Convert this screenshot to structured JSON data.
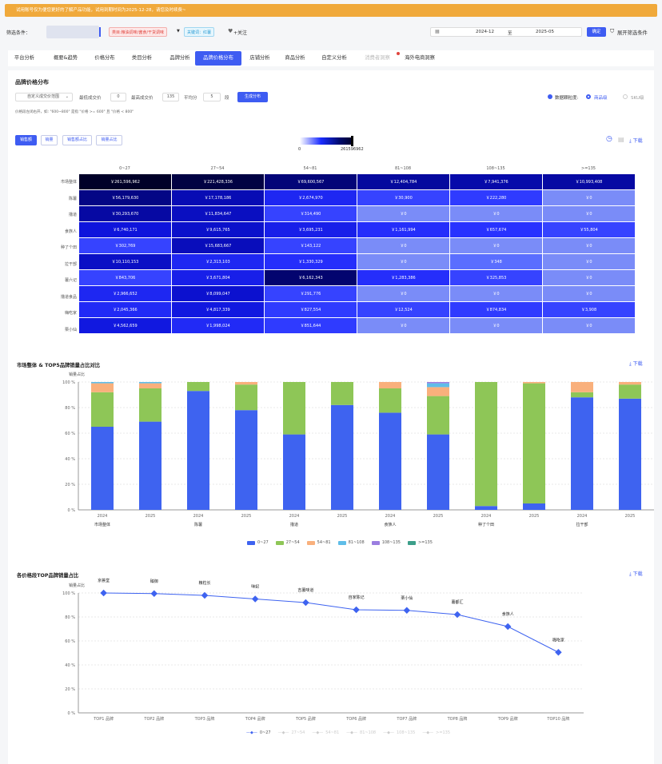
{
  "banner": {
    "text": "试用账号仅为便您更好的了解产品功能，试用到期时间为2025-12-28，请您及时续费~"
  },
  "filter": {
    "label": "筛选条件：",
    "tag_category": "类目:粮油调味/酱食/干货调味",
    "tag_brand": "关键词：红薯",
    "follow": "+关注",
    "date_start": "2024-12",
    "date_to": "至",
    "date_end": "2025-05",
    "confirm": "确定",
    "expand": "展开筛选条件"
  },
  "tabs": [
    {
      "label": "平台分析"
    },
    {
      "label": "概要&趋势"
    },
    {
      "label": "价格分布"
    },
    {
      "label": "类目分析"
    },
    {
      "label": "品牌分析"
    },
    {
      "label": "品牌价格分布"
    },
    {
      "label": "店铺分析"
    },
    {
      "label": "商品分析"
    },
    {
      "label": "自定义分析"
    },
    {
      "label": "消费者洞察"
    },
    {
      "label": "海外电商洞察"
    }
  ],
  "section1": {
    "title": "品牌价格分布",
    "range_select": "自定义成交价范围",
    "min_label": "最低成交价",
    "min_value": "0",
    "max_label": "最高成交价",
    "max_value": "135",
    "avg_label": "平均分",
    "avg_value": "5",
    "seg_label": "段",
    "generate": "生成分布",
    "hint": "价格段左闭右开，如: \"600~800\" 是指 \"价格 >= 600\" 且 \"价格 < 800\"",
    "granularity": "数据颗粒度:",
    "opt_product": "商品级",
    "opt_sku": "SKU级"
  },
  "metric_buttons": {
    "sales_amount": "销售额",
    "sales_volume": "销量",
    "amount_share": "销售额占比",
    "volume_share": "销量占比"
  },
  "download": "下载",
  "heatmap": {
    "scale_min": "0",
    "scale_max": "261596962",
    "cols": [
      "0~27",
      "27~54",
      "54~81",
      "81~108",
      "108~135",
      ">=135"
    ],
    "rows": [
      {
        "name": "市场整体",
        "cells": [
          "￥261,596,962",
          "￥221,428,336",
          "￥69,600,567",
          "￥12,404,784",
          "￥7,941,376",
          "￥10,993,408"
        ],
        "levels": [
          1.0,
          0.85,
          0.55,
          0.4,
          0.35,
          0.38
        ]
      },
      {
        "name": "陈薯",
        "cells": [
          "￥56,179,630",
          "￥17,178,186",
          "￥2,674,970",
          "￥30,900",
          "￥222,280",
          "￥0"
        ],
        "levels": [
          0.5,
          0.32,
          0.15,
          0.1,
          0.11,
          0.0
        ]
      },
      {
        "name": "撸道",
        "cells": [
          "￥30,293,670",
          "￥11,834,647",
          "￥314,490",
          "￥0",
          "￥0",
          "￥0"
        ],
        "levels": [
          0.38,
          0.28,
          0.1,
          0.0,
          0.0,
          0.0
        ]
      },
      {
        "name": "食族人",
        "cells": [
          "￥6,740,171",
          "￥9,615,765",
          "￥3,695,231",
          "￥1,161,994",
          "￥657,674",
          "￥55,804"
        ],
        "levels": [
          0.2,
          0.25,
          0.17,
          0.13,
          0.12,
          0.1
        ]
      },
      {
        "name": "种了个田",
        "cells": [
          "￥302,769",
          "￥15,683,667",
          "￥143,122",
          "￥0",
          "￥0",
          "￥0"
        ],
        "levels": [
          0.1,
          0.3,
          0.1,
          0.0,
          0.0,
          0.0
        ]
      },
      {
        "name": "拉干部",
        "cells": [
          "￥10,110,153",
          "￥2,313,103",
          "￥1,330,329",
          "￥0",
          "￥348",
          "￥0"
        ],
        "levels": [
          0.27,
          0.15,
          0.13,
          0.0,
          0.05,
          0.0
        ]
      },
      {
        "name": "薯六记",
        "cells": [
          "￥843,706",
          "￥3,671,804",
          "￥6,162,343",
          "￥1,283,386",
          "￥325,853",
          "￥0"
        ],
        "levels": [
          0.1,
          0.17,
          0.6,
          0.13,
          0.1,
          0.0
        ]
      },
      {
        "name": "撸道食品",
        "cells": [
          "￥2,966,652",
          "￥8,099,047",
          "￥291,776",
          "￥0",
          "￥0",
          "￥0"
        ],
        "levels": [
          0.15,
          0.24,
          0.1,
          0.0,
          0.0,
          0.0
        ]
      },
      {
        "name": "嗨吃家",
        "cells": [
          "￥2,045,366",
          "￥4,817,339",
          "￥827,554",
          "￥12,524",
          "￥874,834",
          "￥3,908"
        ],
        "levels": [
          0.14,
          0.19,
          0.11,
          0.1,
          0.11,
          0.1
        ]
      },
      {
        "name": "栗小仙",
        "cells": [
          "￥4,562,659",
          "￥1,998,024",
          "￥851,644",
          "￥0",
          "￥0",
          "￥0"
        ],
        "levels": [
          0.19,
          0.14,
          0.11,
          0.0,
          0.0,
          0.0
        ]
      }
    ]
  },
  "chart1": {
    "title": "市场整体 & TOP5品牌销量占比对比",
    "ylabel": "销量占比"
  },
  "chart2": {
    "title": "各价格段TOP品牌销量占比",
    "ylabel": "销量占比"
  },
  "chart_data": [
    {
      "type": "bar",
      "stacked": true,
      "title": "市场整体 & TOP5品牌销量占比对比",
      "ylabel": "销量占比",
      "ylim": [
        0,
        100
      ],
      "yticks": [
        "0 %",
        "20 %",
        "40 %",
        "60 %",
        "80 %",
        "100 %"
      ],
      "categories": [
        "2024",
        "2025",
        "2024",
        "2025",
        "2024",
        "2025",
        "2024",
        "2025",
        "2024",
        "2025",
        "2024",
        "2025"
      ],
      "groups": [
        "市场整体",
        "陈薯",
        "撸道",
        "食族人",
        "种了个田",
        "拉干部"
      ],
      "series": [
        {
          "name": "0~27",
          "color": "#3e63f0",
          "values": [
            65,
            69,
            93,
            78,
            59,
            82,
            76,
            59,
            3,
            5,
            88,
            87
          ]
        },
        {
          "name": "27~54",
          "color": "#8ec657",
          "values": [
            27,
            26,
            7,
            20,
            41,
            18,
            19,
            30,
            97,
            94,
            4,
            11
          ]
        },
        {
          "name": "54~81",
          "color": "#f9b07c",
          "values": [
            7,
            4,
            0,
            2,
            0,
            0,
            5,
            7,
            0,
            1,
            8,
            2
          ]
        },
        {
          "name": "81~108",
          "color": "#5fbde8",
          "values": [
            1,
            1,
            0,
            0,
            0,
            0,
            0,
            3,
            0,
            0,
            0,
            0
          ]
        },
        {
          "name": "108~135",
          "color": "#9b7ee0",
          "values": [
            0,
            0,
            0,
            0,
            0,
            0,
            0,
            1,
            0,
            0,
            0,
            0
          ]
        },
        {
          "name": ">=135",
          "color": "#3c9f8a",
          "values": [
            0,
            0,
            0,
            0,
            0,
            0,
            0,
            0,
            0,
            0,
            0,
            0
          ]
        }
      ]
    },
    {
      "type": "line",
      "title": "各价格段TOP品牌销量占比",
      "ylabel": "销量占比",
      "ylim": [
        0,
        100
      ],
      "yticks": [
        "0 %",
        "20 %",
        "40 %",
        "60 %",
        "80 %",
        "100 %"
      ],
      "categories": [
        "TOP1 品牌",
        "TOP2 品牌",
        "TOP3 品牌",
        "TOP4 品牌",
        "TOP5 品牌",
        "TOP6 品牌",
        "TOP7 品牌",
        "TOP8 品牌",
        "TOP9 品牌",
        "TOP10 品牌"
      ],
      "point_labels": [
        "京荟堂",
        "臻御",
        "粮粒长",
        "味妃",
        "吉薯味道",
        "自家陈记",
        "栗小仙",
        "薯都汇",
        "食族人",
        "嗨吃家"
      ],
      "series": [
        {
          "name": "0~27",
          "color": "#3e63f0",
          "values": [
            100,
            99.5,
            98,
            95,
            92,
            86,
            85.5,
            82,
            72,
            50.5
          ]
        }
      ],
      "legend_disabled": [
        "27~54",
        "54~81",
        "81~108",
        "108~135",
        ">=135"
      ]
    }
  ]
}
